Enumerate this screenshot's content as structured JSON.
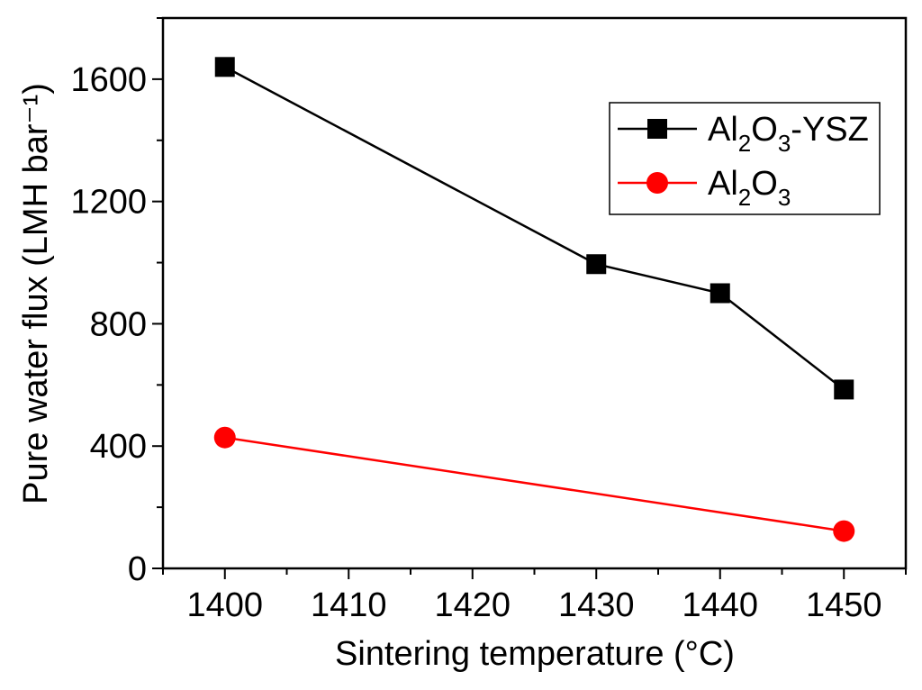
{
  "chart_data": {
    "type": "line",
    "title": "",
    "xlabel": "Sintering temperature (°C)",
    "ylabel": "Pure water flux (LMH bar⁻¹)",
    "xlim": [
      1395,
      1455
    ],
    "ylim": [
      0,
      1800
    ],
    "xticks": [
      1400,
      1410,
      1420,
      1430,
      1440,
      1450
    ],
    "yticks": [
      0,
      400,
      800,
      1200,
      1600
    ],
    "grid": false,
    "legend_position": "top-right",
    "series": [
      {
        "name": "Al2O3-YSZ",
        "legend_parts": [
          "Al",
          "2",
          "O",
          "3",
          "-YSZ"
        ],
        "color": "#000000",
        "marker": "square",
        "x": [
          1400,
          1430,
          1440,
          1450
        ],
        "y": [
          1640,
          995,
          900,
          585
        ]
      },
      {
        "name": "Al2O3",
        "legend_parts": [
          "Al",
          "2",
          "O",
          "3"
        ],
        "color": "#ff0000",
        "marker": "circle",
        "x": [
          1400,
          1450
        ],
        "y": [
          428,
          122
        ]
      }
    ]
  }
}
